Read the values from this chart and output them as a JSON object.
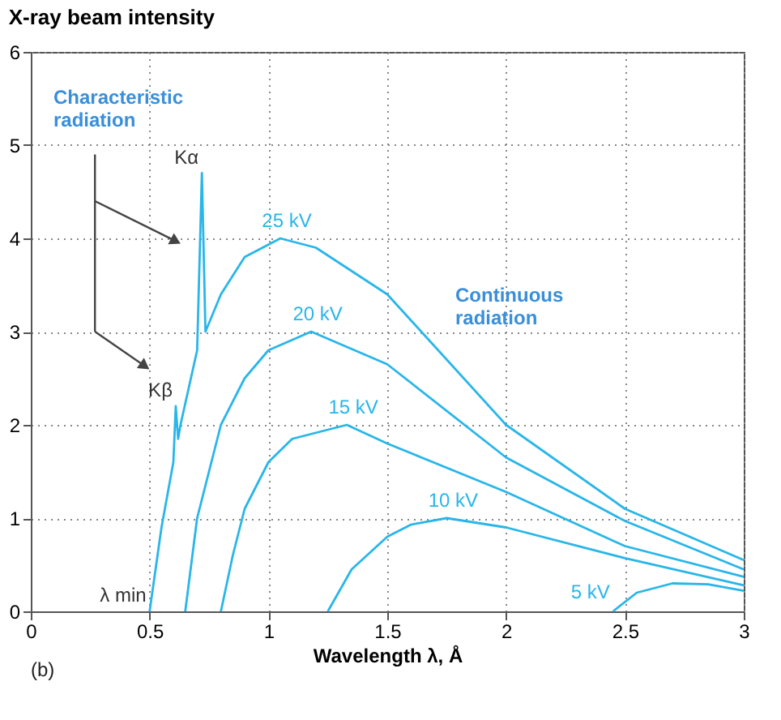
{
  "chart_data": {
    "type": "line",
    "title": "X-ray beam intensity",
    "xlabel": "Wavelength λ, Å",
    "xlim": [
      0,
      3
    ],
    "xticks": [
      0,
      0.5,
      1,
      1.5,
      2,
      2.5,
      3
    ],
    "ylim": [
      0,
      6
    ],
    "yticks": [
      0,
      1,
      2,
      3,
      4,
      5,
      6
    ],
    "grid": true,
    "legend": false,
    "series": [
      {
        "name": "25 kV",
        "color": "#29b6e8",
        "x": [
          0.5,
          0.55,
          0.6,
          0.61,
          0.62,
          0.63,
          0.7,
          0.72,
          0.735,
          0.8,
          0.9,
          1.05,
          1.2,
          1.5,
          2,
          2.5,
          3
        ],
        "values": [
          0,
          0.9,
          1.6,
          2.2,
          1.85,
          2.0,
          2.8,
          4.7,
          3.0,
          3.4,
          3.8,
          4.0,
          3.9,
          3.4,
          2.0,
          1.1,
          0.55
        ]
      },
      {
        "name": "20 kV",
        "color": "#29b6e8",
        "x": [
          0.65,
          0.7,
          0.8,
          0.9,
          1.0,
          1.18,
          1.5,
          2,
          2.5,
          3
        ],
        "values": [
          0,
          1.0,
          2.0,
          2.5,
          2.8,
          3.0,
          2.65,
          1.65,
          0.97,
          0.45
        ]
      },
      {
        "name": "15 kV",
        "color": "#29b6e8",
        "x": [
          0.8,
          0.85,
          0.9,
          1.0,
          1.1,
          1.33,
          1.5,
          2,
          2.5,
          3
        ],
        "values": [
          0,
          0.6,
          1.1,
          1.6,
          1.85,
          2.0,
          1.8,
          1.28,
          0.7,
          0.37
        ]
      },
      {
        "name": "10 kV",
        "color": "#29b6e8",
        "x": [
          1.25,
          1.35,
          1.5,
          1.6,
          1.75,
          2,
          2.5,
          3
        ],
        "values": [
          0,
          0.45,
          0.8,
          0.93,
          1.0,
          0.9,
          0.57,
          0.28
        ]
      },
      {
        "name": "5 kV",
        "color": "#29b6e8",
        "x": [
          2.45,
          2.55,
          2.7,
          2.85,
          3
        ],
        "values": [
          0,
          0.2,
          0.3,
          0.29,
          0.22
        ]
      }
    ],
    "annotations": [
      "Characteristic\nradiation",
      {
        "text": "Kα",
        "x": 0.72,
        "y": 4.7
      },
      {
        "text": "Kβ",
        "x": 0.61,
        "y": 2.2
      },
      "Continuous\nradiation",
      {
        "text": "λ min",
        "x": 0.5,
        "y": 0
      },
      "(b)"
    ]
  }
}
